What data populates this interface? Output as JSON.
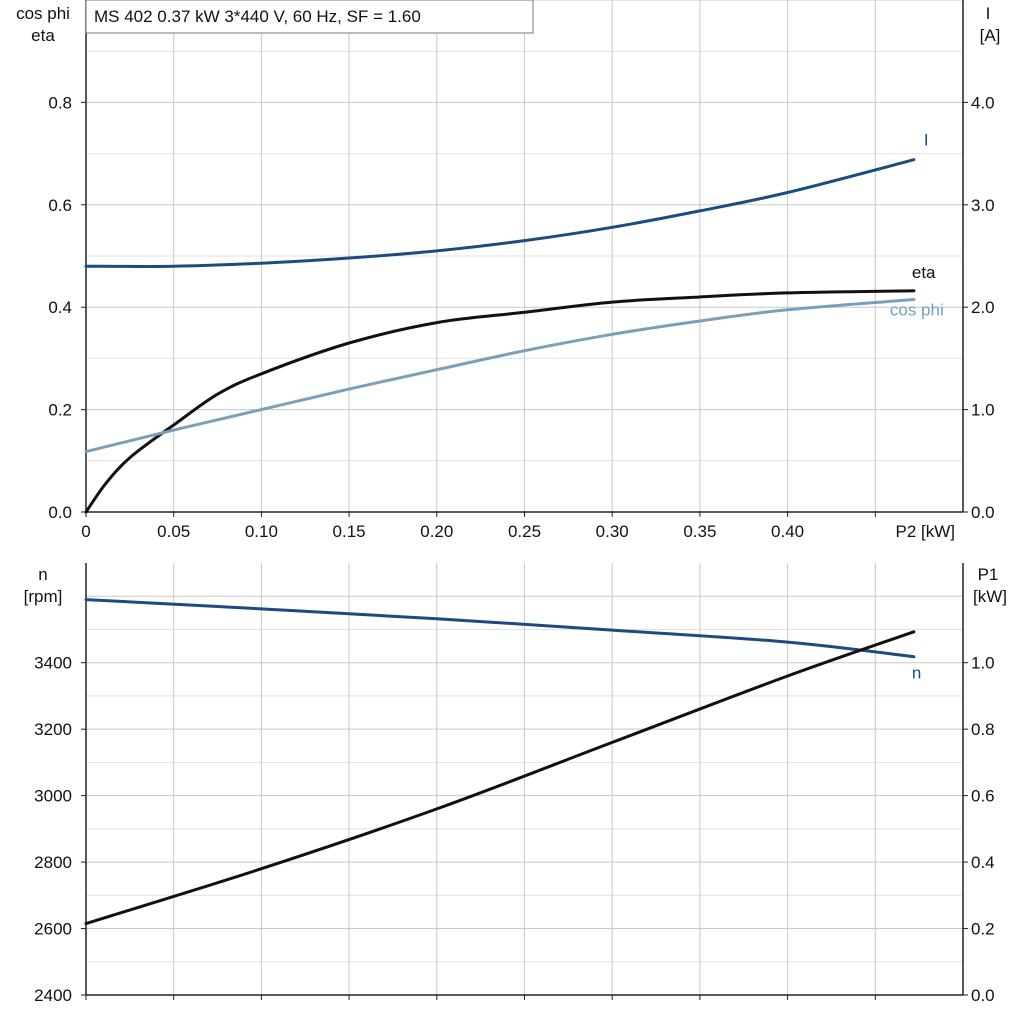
{
  "chart_data": [
    {
      "type": "line",
      "title": "MS 402   0.37 kW   3*440 V, 60 Hz, SF = 1.60",
      "xlabel": "P2 [kW]",
      "xlim": [
        0,
        0.5
      ],
      "x_ticks": [
        0,
        0.05,
        0.1,
        0.15,
        0.2,
        0.25,
        0.3,
        0.35,
        0.4
      ],
      "x_tick_labels": [
        "0",
        "0.05",
        "0.10",
        "0.15",
        "0.20",
        "0.25",
        "0.30",
        "0.35",
        "0.40"
      ],
      "ylabel_left": [
        "cos phi",
        "eta"
      ],
      "ylim_left": [
        0,
        1.0
      ],
      "y_ticks_left": [
        0.0,
        0.2,
        0.4,
        0.6,
        0.8
      ],
      "y_tick_labels_left": [
        "0.0",
        "0.2",
        "0.4",
        "0.6",
        "0.8"
      ],
      "ylabel_right": [
        "I",
        "[A]"
      ],
      "ylim_right": [
        0,
        5.0
      ],
      "y_ticks_right": [
        0.0,
        1.0,
        2.0,
        3.0,
        4.0
      ],
      "y_tick_labels_right": [
        "0.0",
        "1.0",
        "2.0",
        "3.0",
        "4.0"
      ],
      "grid": true,
      "series": [
        {
          "name": "I",
          "axis": "right",
          "color": "#1a4c80",
          "x": [
            0,
            0.05,
            0.1,
            0.15,
            0.2,
            0.25,
            0.3,
            0.35,
            0.4,
            0.472
          ],
          "y": [
            2.4,
            2.4,
            2.43,
            2.48,
            2.55,
            2.65,
            2.78,
            2.94,
            3.12,
            3.44
          ]
        },
        {
          "name": "eta",
          "axis": "left",
          "color": "#111111",
          "x": [
            0,
            0.01,
            0.02,
            0.03,
            0.05,
            0.075,
            0.1,
            0.15,
            0.2,
            0.25,
            0.3,
            0.35,
            0.4,
            0.472
          ],
          "y": [
            0.0,
            0.05,
            0.09,
            0.12,
            0.17,
            0.23,
            0.27,
            0.33,
            0.37,
            0.39,
            0.41,
            0.42,
            0.428,
            0.432
          ]
        },
        {
          "name": "cos phi",
          "axis": "left",
          "color": "#7a9fbd",
          "x": [
            0,
            0.05,
            0.1,
            0.15,
            0.2,
            0.25,
            0.3,
            0.35,
            0.4,
            0.472
          ],
          "y": [
            0.118,
            0.16,
            0.2,
            0.24,
            0.278,
            0.315,
            0.347,
            0.373,
            0.395,
            0.415
          ]
        }
      ]
    },
    {
      "type": "line",
      "xlim": [
        0,
        0.5
      ],
      "x_ticks": [
        0,
        0.05,
        0.1,
        0.15,
        0.2,
        0.25,
        0.3,
        0.35,
        0.4
      ],
      "ylabel_left": [
        "n",
        "[rpm]"
      ],
      "ylim_left": [
        2400,
        3700
      ],
      "y_ticks_left": [
        2400,
        2600,
        2800,
        3000,
        3200,
        3400
      ],
      "y_tick_labels_left": [
        "2400",
        "2600",
        "2800",
        "3000",
        "3200",
        "3400"
      ],
      "ylabel_right": [
        "P1",
        "[kW]"
      ],
      "ylim_right": [
        0,
        1.3
      ],
      "y_ticks_right": [
        0.0,
        0.2,
        0.4,
        0.6,
        0.8,
        1.0
      ],
      "y_tick_labels_right": [
        "0.0",
        "0.2",
        "0.4",
        "0.6",
        "0.8",
        "1.0"
      ],
      "grid": true,
      "series": [
        {
          "name": "n",
          "axis": "left",
          "color": "#1a4c80",
          "x": [
            0,
            0.1,
            0.2,
            0.3,
            0.4,
            0.472
          ],
          "y": [
            3590,
            3562,
            3532,
            3498,
            3462,
            3418
          ]
        },
        {
          "name": "",
          "axis": "right",
          "color": "#111111",
          "x": [
            0,
            0.1,
            0.2,
            0.3,
            0.4,
            0.472
          ],
          "y": [
            0.215,
            0.38,
            0.56,
            0.76,
            0.96,
            1.093
          ]
        }
      ]
    }
  ]
}
